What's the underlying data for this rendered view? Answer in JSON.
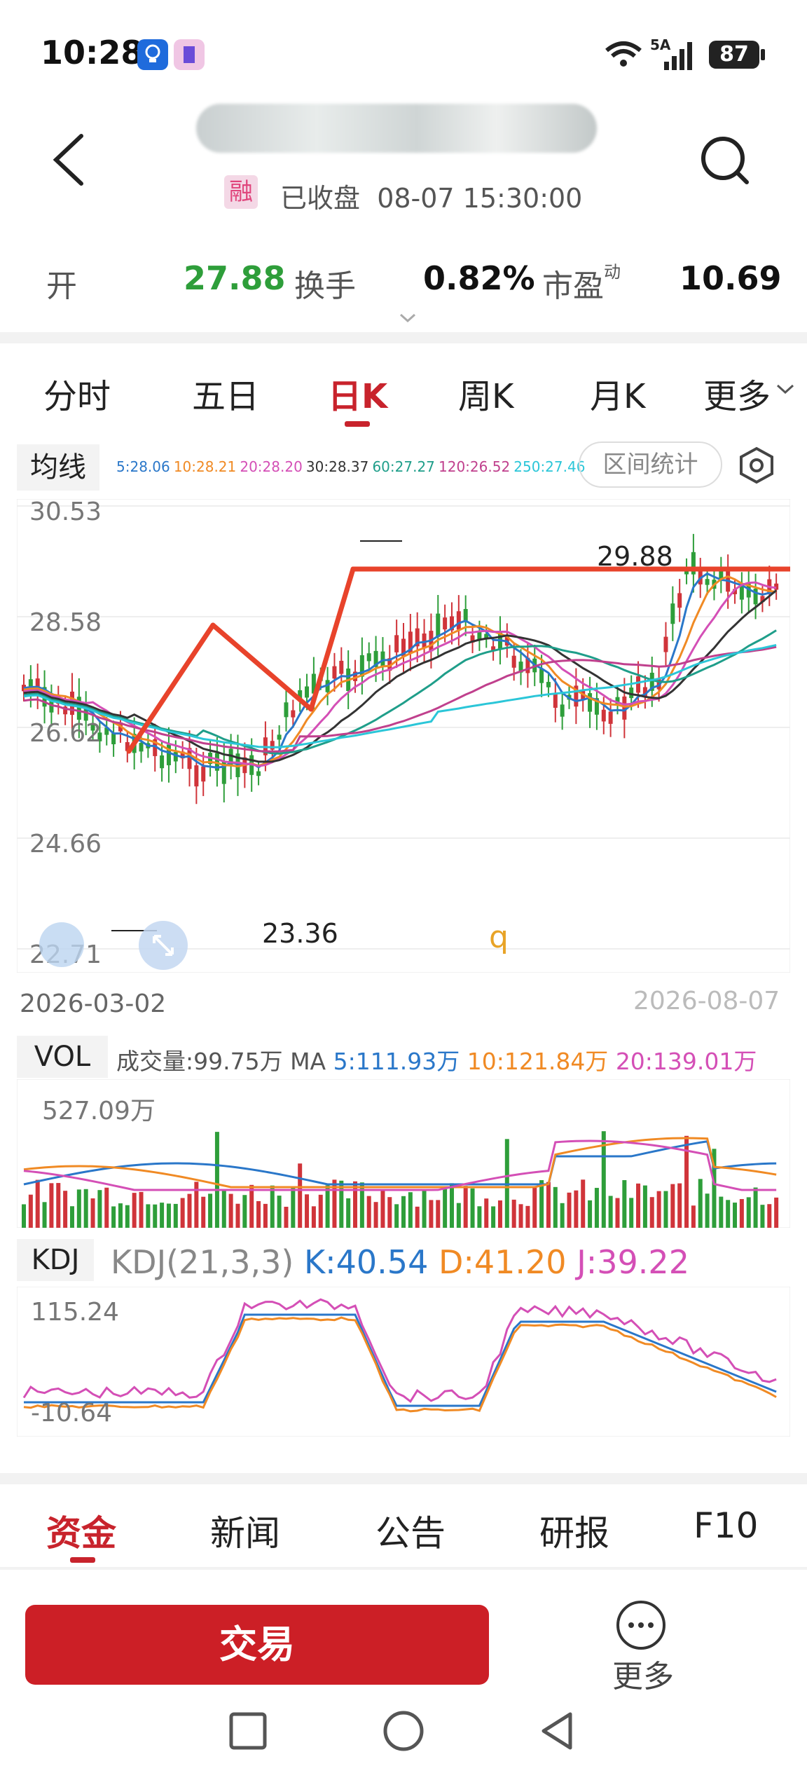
{
  "status_bar": {
    "time": "10:28",
    "network": "5A",
    "battery": "87"
  },
  "header": {
    "margin_badge": "融",
    "status": "已收盘",
    "datetime": "08-07  15:30:00"
  },
  "quote": {
    "open_label": "开",
    "open_value": "27.88",
    "turnover_label": "换手",
    "turnover_value": "0.82%",
    "pe_label": "市盈",
    "pe_sup": "动",
    "pe_value": "10.69"
  },
  "period_tabs": [
    "分时",
    "五日",
    "日K",
    "周K",
    "月K",
    "更多"
  ],
  "active_period": "日K",
  "ma": {
    "label": "均线",
    "items": [
      {
        "text": "5:28.06",
        "color": "#2a77c9"
      },
      {
        "text": "10:28.21",
        "color": "#f08a24"
      },
      {
        "text": "20:28.20",
        "color": "#d44fb6"
      },
      {
        "text": "30:28.37",
        "color": "#333333"
      },
      {
        "text": "60:27.27",
        "color": "#1f9e8a"
      },
      {
        "text": "120:26.52",
        "color": "#c0408d"
      },
      {
        "text": "250:27.46",
        "color": "#2bc6d8"
      }
    ],
    "range_button": "区间统计"
  },
  "price_axis": [
    "30.53",
    "28.58",
    "26.62",
    "24.66",
    "22.71"
  ],
  "annotations": {
    "high": "29.88",
    "low": "23.36",
    "marker": "q"
  },
  "dates": {
    "start": "2026-03-02",
    "end": "2026-08-07"
  },
  "volume": {
    "label": "VOL",
    "summary": "成交量:99.75万 MA",
    "ma5": "5:111.93万",
    "ma10": "10:121.84万",
    "ma20": "20:139.01万",
    "axis_top": "527.09万"
  },
  "kdj": {
    "label": "KDJ",
    "params": "KDJ(21,3,3)",
    "k": "K:40.54",
    "d": "D:41.20",
    "j": "J:39.22",
    "axis_top": "115.24",
    "axis_bottom": "-10.64"
  },
  "bottom_tabs": [
    "资金",
    "新闻",
    "公告",
    "研报",
    "F10"
  ],
  "trade_button": "交易",
  "more_label": "更多",
  "colors": {
    "accent": "#c8232c",
    "up": "#d0343a",
    "down": "#2e9e3a",
    "arrow": "#e8432b"
  }
}
